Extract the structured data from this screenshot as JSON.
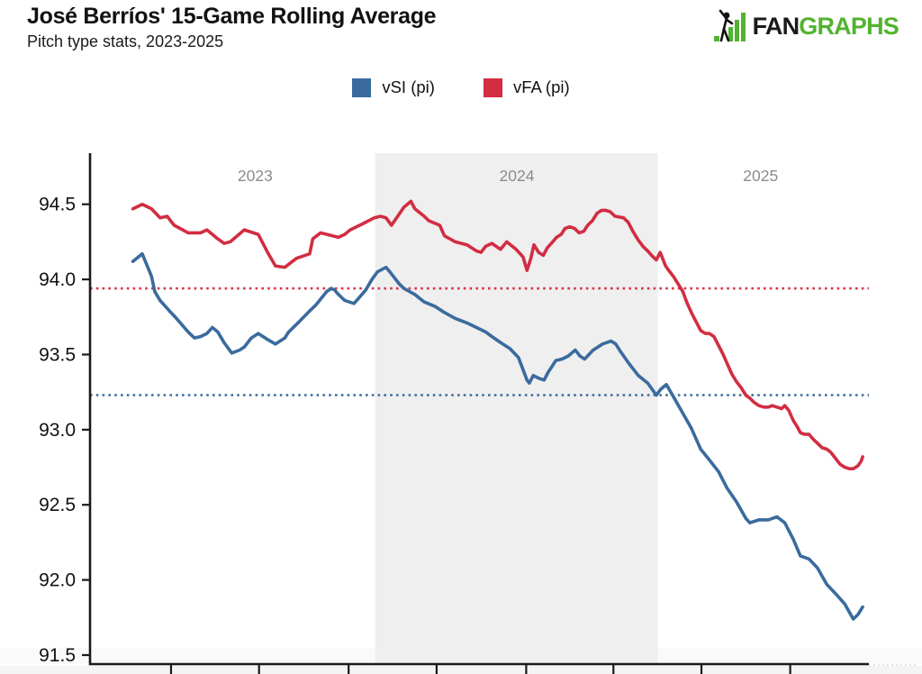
{
  "header": {
    "title": "José Berríos' 15-Game Rolling Average",
    "subtitle": "Pitch type stats, 2023-2025"
  },
  "logo": {
    "fan": "FAN",
    "graphs": "GRAPHS",
    "fan_color": "#1a1a1a",
    "graphs_color": "#52b330"
  },
  "legend": [
    {
      "label": "vSI (pi)",
      "color": "#3a6b9e"
    },
    {
      "label": "vFA (pi)",
      "color": "#d22d42"
    }
  ],
  "chart_data": {
    "type": "line",
    "title": "José Berríos' 15-Game Rolling Average",
    "subtitle": "Pitch type stats, 2023-2025",
    "xlabel": "",
    "ylabel": "",
    "y_unit": "mph",
    "ylim": [
      91.44,
      94.84
    ],
    "y_ticks": [
      94.5,
      94.0,
      93.5,
      93.0,
      92.5,
      92.0,
      91.5
    ],
    "x_unit": "percent of plotted span (x tick labels are cropped out of the screenshot)",
    "x_ticks_percent": [
      10.4,
      21.7,
      33.2,
      44.5,
      56.0,
      67.2,
      78.5,
      89.9
    ],
    "grid": false,
    "legend_position": "top-center",
    "season_bands": [
      {
        "label": "2024",
        "start_percent": 36.6,
        "end_percent": 72.9,
        "fill": "#efefef"
      }
    ],
    "year_labels": [
      {
        "text": "2023",
        "x_percent": 21.2
      },
      {
        "text": "2024",
        "x_percent": 54.8
      },
      {
        "text": "2025",
        "x_percent": 86.1
      }
    ],
    "reference_lines": [
      {
        "series": "vFA (pi)",
        "value": 93.94,
        "color": "#d8354a",
        "style": "dotted"
      },
      {
        "series": "vSI (pi)",
        "value": 93.23,
        "color": "#3a6b9e",
        "style": "dotted"
      }
    ],
    "series": [
      {
        "name": "vSI (pi)",
        "color": "#3a6b9e",
        "points": [
          [
            5.5,
            94.12
          ],
          [
            6.7,
            94.17
          ],
          [
            7.9,
            94.02
          ],
          [
            8.3,
            93.92
          ],
          [
            9.0,
            93.86
          ],
          [
            10.2,
            93.79
          ],
          [
            11.1,
            93.74
          ],
          [
            12.6,
            93.65
          ],
          [
            13.4,
            93.61
          ],
          [
            14.2,
            93.62
          ],
          [
            15.0,
            93.64
          ],
          [
            15.7,
            93.68
          ],
          [
            16.4,
            93.65
          ],
          [
            17.2,
            93.58
          ],
          [
            18.2,
            93.51
          ],
          [
            19.2,
            93.53
          ],
          [
            19.8,
            93.55
          ],
          [
            20.7,
            93.61
          ],
          [
            21.6,
            93.64
          ],
          [
            22.8,
            93.6
          ],
          [
            23.8,
            93.57
          ],
          [
            25.0,
            93.61
          ],
          [
            25.5,
            93.65
          ],
          [
            26.5,
            93.7
          ],
          [
            28.2,
            93.79
          ],
          [
            29.0,
            93.83
          ],
          [
            30.4,
            93.92
          ],
          [
            31.0,
            93.94
          ],
          [
            31.4,
            93.93
          ],
          [
            31.9,
            93.9
          ],
          [
            32.7,
            93.86
          ],
          [
            33.9,
            93.84
          ],
          [
            34.4,
            93.87
          ],
          [
            35.4,
            93.93
          ],
          [
            36.2,
            94.0
          ],
          [
            36.9,
            94.05
          ],
          [
            38.0,
            94.08
          ],
          [
            38.5,
            94.05
          ],
          [
            39.7,
            93.97
          ],
          [
            40.3,
            93.94
          ],
          [
            41.7,
            93.9
          ],
          [
            42.9,
            93.85
          ],
          [
            44.3,
            93.82
          ],
          [
            45.5,
            93.78
          ],
          [
            46.9,
            93.74
          ],
          [
            48.4,
            93.71
          ],
          [
            49.6,
            93.68
          ],
          [
            50.8,
            93.65
          ],
          [
            51.6,
            93.62
          ],
          [
            52.7,
            93.58
          ],
          [
            53.9,
            93.54
          ],
          [
            55.0,
            93.48
          ],
          [
            56.1,
            93.33
          ],
          [
            56.4,
            93.31
          ],
          [
            56.9,
            93.36
          ],
          [
            57.7,
            93.34
          ],
          [
            58.3,
            93.33
          ],
          [
            58.8,
            93.38
          ],
          [
            59.8,
            93.46
          ],
          [
            60.6,
            93.47
          ],
          [
            61.4,
            93.49
          ],
          [
            62.3,
            93.53
          ],
          [
            62.9,
            93.49
          ],
          [
            63.5,
            93.47
          ],
          [
            64.6,
            93.53
          ],
          [
            65.8,
            93.57
          ],
          [
            66.9,
            93.59
          ],
          [
            67.5,
            93.57
          ],
          [
            68.1,
            93.52
          ],
          [
            69.2,
            93.44
          ],
          [
            70.4,
            93.36
          ],
          [
            71.6,
            93.31
          ],
          [
            72.7,
            93.23
          ],
          [
            73.3,
            93.27
          ],
          [
            74.0,
            93.3
          ],
          [
            74.9,
            93.22
          ],
          [
            76.1,
            93.11
          ],
          [
            77.2,
            93.01
          ],
          [
            78.4,
            92.87
          ],
          [
            79.5,
            92.8
          ],
          [
            80.7,
            92.72
          ],
          [
            81.8,
            92.61
          ],
          [
            83.0,
            92.52
          ],
          [
            84.2,
            92.41
          ],
          [
            84.7,
            92.38
          ],
          [
            85.9,
            92.4
          ],
          [
            87.1,
            92.4
          ],
          [
            88.2,
            92.42
          ],
          [
            89.2,
            92.38
          ],
          [
            90.3,
            92.27
          ],
          [
            91.2,
            92.16
          ],
          [
            92.3,
            92.14
          ],
          [
            93.4,
            92.08
          ],
          [
            94.6,
            91.97
          ],
          [
            95.7,
            91.91
          ],
          [
            96.9,
            91.84
          ],
          [
            98.0,
            91.74
          ],
          [
            98.6,
            91.77
          ],
          [
            99.2,
            91.82
          ]
        ]
      },
      {
        "name": "vFA (pi)",
        "color": "#d22d42",
        "points": [
          [
            5.5,
            94.47
          ],
          [
            6.7,
            94.5
          ],
          [
            7.9,
            94.47
          ],
          [
            9.0,
            94.41
          ],
          [
            9.9,
            94.42
          ],
          [
            10.8,
            94.36
          ],
          [
            12.6,
            94.31
          ],
          [
            14.2,
            94.31
          ],
          [
            15.0,
            94.33
          ],
          [
            16.4,
            94.27
          ],
          [
            17.2,
            94.24
          ],
          [
            18.0,
            94.25
          ],
          [
            19.8,
            94.33
          ],
          [
            21.6,
            94.3
          ],
          [
            22.8,
            94.18
          ],
          [
            23.8,
            94.09
          ],
          [
            25.0,
            94.08
          ],
          [
            26.5,
            94.14
          ],
          [
            28.2,
            94.17
          ],
          [
            28.6,
            94.27
          ],
          [
            29.6,
            94.31
          ],
          [
            30.4,
            94.3
          ],
          [
            31.9,
            94.28
          ],
          [
            32.7,
            94.3
          ],
          [
            33.4,
            94.33
          ],
          [
            35.0,
            94.37
          ],
          [
            36.5,
            94.41
          ],
          [
            37.3,
            94.42
          ],
          [
            38.0,
            94.41
          ],
          [
            38.7,
            94.36
          ],
          [
            39.5,
            94.42
          ],
          [
            40.3,
            94.48
          ],
          [
            41.2,
            94.52
          ],
          [
            41.7,
            94.47
          ],
          [
            42.9,
            94.42
          ],
          [
            43.5,
            94.39
          ],
          [
            44.9,
            94.36
          ],
          [
            45.5,
            94.29
          ],
          [
            46.9,
            94.25
          ],
          [
            48.4,
            94.23
          ],
          [
            49.6,
            94.19
          ],
          [
            50.2,
            94.18
          ],
          [
            50.8,
            94.22
          ],
          [
            51.6,
            94.24
          ],
          [
            52.7,
            94.2
          ],
          [
            53.5,
            94.25
          ],
          [
            54.7,
            94.2
          ],
          [
            55.6,
            94.15
          ],
          [
            56.1,
            94.06
          ],
          [
            56.6,
            94.14
          ],
          [
            57.0,
            94.23
          ],
          [
            57.6,
            94.18
          ],
          [
            58.2,
            94.16
          ],
          [
            58.7,
            94.21
          ],
          [
            59.4,
            94.25
          ],
          [
            59.9,
            94.28
          ],
          [
            60.5,
            94.3
          ],
          [
            61.0,
            94.34
          ],
          [
            61.6,
            94.35
          ],
          [
            62.2,
            94.34
          ],
          [
            62.8,
            94.31
          ],
          [
            63.4,
            94.32
          ],
          [
            63.9,
            94.36
          ],
          [
            64.5,
            94.39
          ],
          [
            65.1,
            94.44
          ],
          [
            65.7,
            94.46
          ],
          [
            66.2,
            94.46
          ],
          [
            66.8,
            94.45
          ],
          [
            67.4,
            94.42
          ],
          [
            68.5,
            94.41
          ],
          [
            69.1,
            94.38
          ],
          [
            69.7,
            94.32
          ],
          [
            70.4,
            94.26
          ],
          [
            71.0,
            94.22
          ],
          [
            71.6,
            94.19
          ],
          [
            72.1,
            94.16
          ],
          [
            72.7,
            94.13
          ],
          [
            73.2,
            94.18
          ],
          [
            73.9,
            94.09
          ],
          [
            74.3,
            94.06
          ],
          [
            74.9,
            94.02
          ],
          [
            75.5,
            93.97
          ],
          [
            76.1,
            93.92
          ],
          [
            76.6,
            93.85
          ],
          [
            77.2,
            93.78
          ],
          [
            77.8,
            93.72
          ],
          [
            78.4,
            93.66
          ],
          [
            79.0,
            93.64
          ],
          [
            79.5,
            93.64
          ],
          [
            80.1,
            93.62
          ],
          [
            80.7,
            93.56
          ],
          [
            81.3,
            93.5
          ],
          [
            81.8,
            93.44
          ],
          [
            82.4,
            93.37
          ],
          [
            83.0,
            93.32
          ],
          [
            83.6,
            93.28
          ],
          [
            84.2,
            93.23
          ],
          [
            84.7,
            93.21
          ],
          [
            85.3,
            93.18
          ],
          [
            85.9,
            93.16
          ],
          [
            86.5,
            93.15
          ],
          [
            87.1,
            93.15
          ],
          [
            87.6,
            93.16
          ],
          [
            88.2,
            93.15
          ],
          [
            88.8,
            93.14
          ],
          [
            89.2,
            93.16
          ],
          [
            89.7,
            93.13
          ],
          [
            90.3,
            93.06
          ],
          [
            90.8,
            93.02
          ],
          [
            91.2,
            92.98
          ],
          [
            91.7,
            92.97
          ],
          [
            92.3,
            92.97
          ],
          [
            92.8,
            92.94
          ],
          [
            93.4,
            92.91
          ],
          [
            94.0,
            92.88
          ],
          [
            94.6,
            92.87
          ],
          [
            95.1,
            92.85
          ],
          [
            95.7,
            92.81
          ],
          [
            96.3,
            92.77
          ],
          [
            96.9,
            92.75
          ],
          [
            97.5,
            92.74
          ],
          [
            98.0,
            92.74
          ],
          [
            98.6,
            92.76
          ],
          [
            99.0,
            92.79
          ],
          [
            99.2,
            92.82
          ]
        ]
      }
    ]
  }
}
